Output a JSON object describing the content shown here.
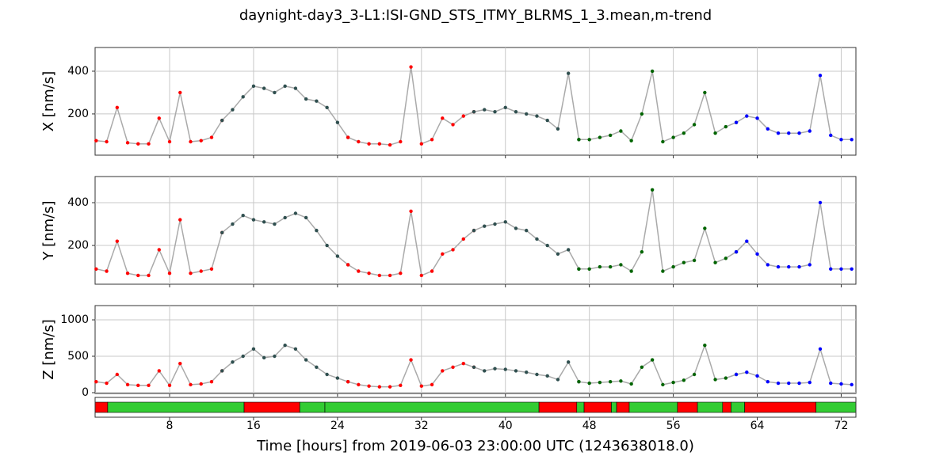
{
  "chart_data": {
    "type": "line",
    "title": "daynight-day3_3-L1:ISI-GND_STS_ITMY_BLRMS_1_3.mean,m-trend",
    "xlabel": "Time [hours] from 2019-06-03 23:00:00 UTC (1243638018.0)",
    "xlim": [
      0.9,
      73.4
    ],
    "xticks": [
      8,
      16,
      24,
      32,
      40,
      48,
      56,
      64,
      72
    ],
    "grid": true,
    "line_color": "#aaaaaa",
    "panels": [
      {
        "ylabel": "X [nm/s]",
        "ylim": [
          7,
          511
        ],
        "yticks": [
          200,
          400
        ],
        "series": [
          {
            "color": "#ff0000",
            "x": [
              1,
              2,
              3,
              4,
              5,
              6,
              7,
              8,
              9,
              10,
              11,
              12,
              13
            ],
            "values": [
              75,
              70,
              230,
              65,
              60,
              60,
              180,
              70,
              300,
              70,
              75,
              90,
              170
            ]
          },
          {
            "color": "#2f4f4f",
            "x": [
              13,
              14,
              15,
              16,
              17,
              18,
              19,
              20,
              21,
              22,
              23,
              24,
              25
            ],
            "values": [
              170,
              220,
              280,
              330,
              320,
              300,
              330,
              320,
              270,
              260,
              230,
              160,
              90
            ]
          },
          {
            "color": "#ff0000",
            "x": [
              25,
              26,
              27,
              28,
              29,
              30,
              31,
              32,
              33,
              34,
              35,
              36,
              37
            ],
            "values": [
              90,
              70,
              60,
              60,
              55,
              70,
              420,
              60,
              80,
              180,
              150,
              190,
              210
            ]
          },
          {
            "color": "#2f4f4f",
            "x": [
              37,
              38,
              39,
              40,
              41,
              42,
              43,
              44,
              45,
              46,
              47
            ],
            "values": [
              210,
              220,
              210,
              230,
              210,
              200,
              190,
              170,
              130,
              390,
              80
            ]
          },
          {
            "color": "#006400",
            "x": [
              47,
              48,
              49,
              50,
              51,
              52,
              53,
              54,
              55,
              56,
              57,
              58,
              59,
              60,
              61,
              62
            ],
            "values": [
              80,
              80,
              90,
              100,
              120,
              75,
              200,
              400,
              70,
              90,
              110,
              150,
              300,
              110,
              140,
              160
            ]
          },
          {
            "color": "#0000ff",
            "x": [
              62,
              63,
              64,
              65,
              66,
              67,
              68,
              69,
              70,
              71,
              72,
              73
            ],
            "values": [
              160,
              190,
              180,
              130,
              110,
              110,
              110,
              120,
              380,
              100,
              80,
              80
            ]
          }
        ]
      },
      {
        "ylabel": "Y [nm/s]",
        "ylim": [
          19,
          522
        ],
        "yticks": [
          200,
          400
        ],
        "series": [
          {
            "color": "#ff0000",
            "x": [
              1,
              2,
              3,
              4,
              5,
              6,
              7,
              8,
              9,
              10,
              11,
              12,
              13
            ],
            "values": [
              90,
              80,
              220,
              70,
              60,
              60,
              180,
              70,
              320,
              70,
              80,
              90,
              260
            ]
          },
          {
            "color": "#2f4f4f",
            "x": [
              13,
              14,
              15,
              16,
              17,
              18,
              19,
              20,
              21,
              22,
              23,
              24,
              25
            ],
            "values": [
              260,
              300,
              340,
              320,
              310,
              300,
              330,
              350,
              330,
              270,
              200,
              150,
              110
            ]
          },
          {
            "color": "#ff0000",
            "x": [
              25,
              26,
              27,
              28,
              29,
              30,
              31,
              32,
              33,
              34,
              35,
              36,
              37
            ],
            "values": [
              110,
              80,
              70,
              60,
              60,
              70,
              360,
              60,
              80,
              160,
              180,
              230,
              270
            ]
          },
          {
            "color": "#2f4f4f",
            "x": [
              37,
              38,
              39,
              40,
              41,
              42,
              43,
              44,
              45,
              46,
              47
            ],
            "values": [
              270,
              290,
              300,
              310,
              280,
              270,
              230,
              200,
              160,
              180,
              90
            ]
          },
          {
            "color": "#006400",
            "x": [
              47,
              48,
              49,
              50,
              51,
              52,
              53,
              54,
              55,
              56,
              57,
              58,
              59,
              60,
              61,
              62
            ],
            "values": [
              90,
              90,
              100,
              100,
              110,
              80,
              170,
              460,
              80,
              100,
              120,
              130,
              280,
              120,
              140,
              170
            ]
          },
          {
            "color": "#0000ff",
            "x": [
              62,
              63,
              64,
              65,
              66,
              67,
              68,
              69,
              70,
              71,
              72,
              73
            ],
            "values": [
              170,
              220,
              160,
              110,
              100,
              100,
              100,
              110,
              400,
              90,
              90,
              90
            ]
          }
        ]
      },
      {
        "ylabel": "Z [nm/s]",
        "ylim": [
          -11,
          1196
        ],
        "yticks": [
          0,
          500,
          1000
        ],
        "series": [
          {
            "color": "#ff0000",
            "x": [
              1,
              2,
              3,
              4,
              5,
              6,
              7,
              8,
              9,
              10,
              11,
              12,
              13
            ],
            "values": [
              150,
              130,
              250,
              110,
              100,
              100,
              300,
              100,
              400,
              110,
              120,
              150,
              300
            ]
          },
          {
            "color": "#2f4f4f",
            "x": [
              13,
              14,
              15,
              16,
              17,
              18,
              19,
              20,
              21,
              22,
              23,
              24,
              25
            ],
            "values": [
              300,
              420,
              500,
              600,
              480,
              500,
              650,
              600,
              450,
              350,
              250,
              200,
              150
            ]
          },
          {
            "color": "#ff0000",
            "x": [
              25,
              26,
              27,
              28,
              29,
              30,
              31,
              32,
              33,
              34,
              35,
              36,
              37
            ],
            "values": [
              150,
              110,
              90,
              80,
              80,
              100,
              450,
              90,
              110,
              300,
              350,
              400,
              350
            ]
          },
          {
            "color": "#2f4f4f",
            "x": [
              37,
              38,
              39,
              40,
              41,
              42,
              43,
              44,
              45,
              46,
              47
            ],
            "values": [
              350,
              300,
              330,
              320,
              300,
              280,
              250,
              230,
              180,
              420,
              150
            ]
          },
          {
            "color": "#006400",
            "x": [
              47,
              48,
              49,
              50,
              51,
              52,
              53,
              54,
              55,
              56,
              57,
              58,
              59,
              60,
              61,
              62
            ],
            "values": [
              150,
              130,
              140,
              150,
              160,
              120,
              350,
              450,
              110,
              140,
              170,
              250,
              650,
              180,
              200,
              250
            ]
          },
          {
            "color": "#0000ff",
            "x": [
              62,
              63,
              64,
              65,
              66,
              67,
              68,
              69,
              70,
              71,
              72,
              73
            ],
            "values": [
              250,
              280,
              230,
              150,
              130,
              130,
              130,
              140,
              600,
              130,
              120,
              110
            ]
          }
        ]
      }
    ],
    "state": {
      "segments": [
        {
          "start": 0.9,
          "end": 2.1,
          "color": "#ff0000"
        },
        {
          "start": 2.1,
          "end": 15.1,
          "color": "#33cc33"
        },
        {
          "start": 15.1,
          "end": 20.4,
          "color": "#ff0000"
        },
        {
          "start": 20.4,
          "end": 22.8,
          "color": "#33cc33"
        },
        {
          "start": 22.8,
          "end": 43.2,
          "color": "#33cc33"
        },
        {
          "start": 43.2,
          "end": 46.8,
          "color": "#ff0000"
        },
        {
          "start": 46.8,
          "end": 47.5,
          "color": "#33cc33"
        },
        {
          "start": 47.5,
          "end": 50.1,
          "color": "#ff0000"
        },
        {
          "start": 50.1,
          "end": 50.6,
          "color": "#33cc33"
        },
        {
          "start": 50.6,
          "end": 51.8,
          "color": "#ff0000"
        },
        {
          "start": 51.8,
          "end": 56.4,
          "color": "#33cc33"
        },
        {
          "start": 56.4,
          "end": 58.3,
          "color": "#ff0000"
        },
        {
          "start": 58.3,
          "end": 60.7,
          "color": "#33cc33"
        },
        {
          "start": 60.7,
          "end": 61.5,
          "color": "#ff0000"
        },
        {
          "start": 61.5,
          "end": 62.8,
          "color": "#33cc33"
        },
        {
          "start": 62.8,
          "end": 69.6,
          "color": "#ff0000"
        },
        {
          "start": 69.6,
          "end": 73.4,
          "color": "#33cc33"
        }
      ]
    }
  }
}
